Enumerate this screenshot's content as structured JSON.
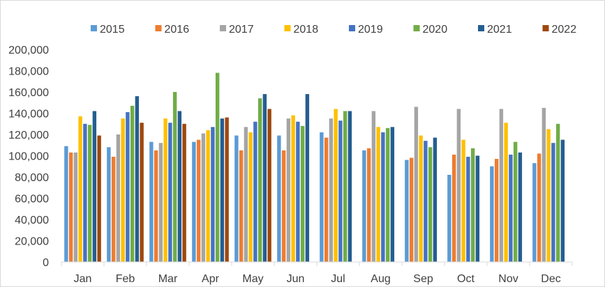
{
  "chart_data": {
    "type": "bar",
    "categories": [
      "Jan",
      "Feb",
      "Mar",
      "Apr",
      "May",
      "Jun",
      "Jul",
      "Aug",
      "Sep",
      "Oct",
      "Nov",
      "Dec"
    ],
    "ylim": [
      0,
      200000
    ],
    "y_ticks": [
      0,
      20000,
      40000,
      60000,
      80000,
      100000,
      120000,
      140000,
      160000,
      180000,
      200000
    ],
    "y_tick_labels": [
      "0",
      "20,000",
      "40,000",
      "60,000",
      "80,000",
      "100,000",
      "120,000",
      "140,000",
      "160,000",
      "180,000",
      "200,000"
    ],
    "grid": false,
    "legend_position": "top",
    "series": [
      {
        "name": "2015",
        "color": "#5b9bd5",
        "values": [
          109000,
          108000,
          113000,
          113000,
          119000,
          119000,
          122000,
          105000,
          96000,
          82000,
          90000,
          93000
        ]
      },
      {
        "name": "2016",
        "color": "#ed7d31",
        "values": [
          103000,
          99000,
          105000,
          115000,
          105000,
          105000,
          117000,
          107000,
          98000,
          101000,
          97000,
          102000
        ]
      },
      {
        "name": "2017",
        "color": "#a5a5a5",
        "values": [
          103000,
          120000,
          112000,
          121000,
          127000,
          135000,
          135000,
          142000,
          146000,
          144000,
          144000,
          145000
        ]
      },
      {
        "name": "2018",
        "color": "#ffc000",
        "values": [
          137000,
          135000,
          135000,
          124000,
          122000,
          138000,
          144000,
          127000,
          119000,
          115000,
          131000,
          125000
        ]
      },
      {
        "name": "2019",
        "color": "#4472c4",
        "values": [
          130000,
          141000,
          131000,
          127000,
          132000,
          132000,
          133000,
          122000,
          114000,
          99000,
          101000,
          112000
        ]
      },
      {
        "name": "2020",
        "color": "#70ad47",
        "values": [
          129000,
          147000,
          160000,
          178000,
          154000,
          128000,
          142000,
          126000,
          108000,
          107000,
          113000,
          130000
        ]
      },
      {
        "name": "2021",
        "color": "#255e91",
        "values": [
          142000,
          156000,
          142000,
          135000,
          158000,
          158000,
          142000,
          127000,
          117000,
          100000,
          103000,
          115000
        ]
      },
      {
        "name": "2022",
        "color": "#9e480e",
        "values": [
          119000,
          131000,
          130000,
          136000,
          144000,
          null,
          null,
          null,
          null,
          null,
          null,
          null
        ]
      }
    ]
  }
}
